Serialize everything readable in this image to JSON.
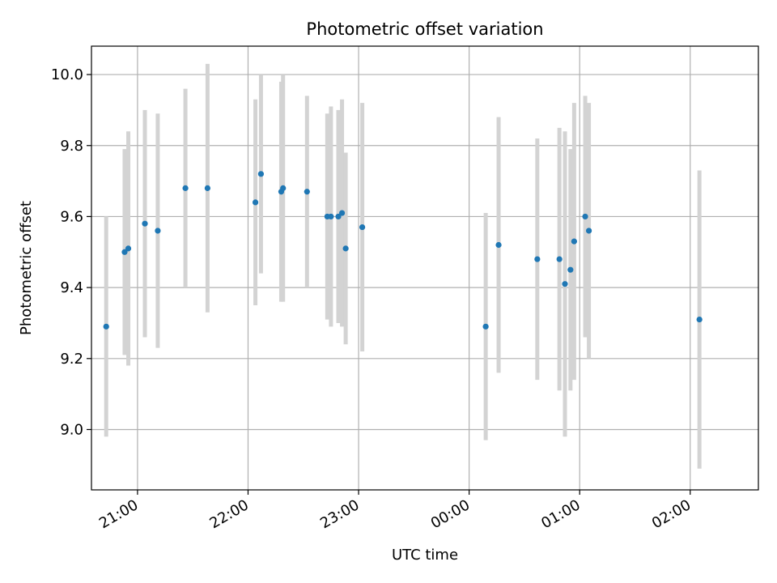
{
  "chart_data": {
    "type": "scatter",
    "title": "Photometric offset variation",
    "xlabel": "UTC time",
    "ylabel": "Photometric offset",
    "grid": true,
    "x_axis": "time",
    "xlim": [
      "20:35",
      "02:37"
    ],
    "ylim": [
      8.83,
      10.08
    ],
    "x_ticks": [
      "21:00",
      "22:00",
      "23:00",
      "00:00",
      "01:00",
      "02:00"
    ],
    "y_ticks": [
      "9.0",
      "9.2",
      "9.4",
      "9.6",
      "9.8",
      "10.0"
    ],
    "marker_color": "#1f77b4",
    "errorbar_color": "#d3d3d3",
    "points": [
      {
        "time": "20:43",
        "y": 9.29,
        "err": 0.31
      },
      {
        "time": "20:53",
        "y": 9.5,
        "err": 0.29
      },
      {
        "time": "20:55",
        "y": 9.51,
        "err": 0.33
      },
      {
        "time": "21:04",
        "y": 9.58,
        "err": 0.32
      },
      {
        "time": "21:11",
        "y": 9.56,
        "err": 0.33
      },
      {
        "time": "21:26",
        "y": 9.68,
        "err": 0.28
      },
      {
        "time": "21:38",
        "y": 9.68,
        "err": 0.35
      },
      {
        "time": "22:04",
        "y": 9.64,
        "err": 0.29
      },
      {
        "time": "22:07",
        "y": 9.72,
        "err": 0.28
      },
      {
        "time": "22:18",
        "y": 9.67,
        "err": 0.31
      },
      {
        "time": "22:19",
        "y": 9.68,
        "err": 0.32
      },
      {
        "time": "22:32",
        "y": 9.67,
        "err": 0.27
      },
      {
        "time": "22:43",
        "y": 9.6,
        "err": 0.29
      },
      {
        "time": "22:45",
        "y": 9.6,
        "err": 0.31
      },
      {
        "time": "22:49",
        "y": 9.6,
        "err": 0.3
      },
      {
        "time": "22:51",
        "y": 9.61,
        "err": 0.32
      },
      {
        "time": "22:53",
        "y": 9.51,
        "err": 0.27
      },
      {
        "time": "23:02",
        "y": 9.57,
        "err": 0.35
      },
      {
        "time": "00:09",
        "y": 9.29,
        "err": 0.32
      },
      {
        "time": "00:16",
        "y": 9.52,
        "err": 0.36
      },
      {
        "time": "00:37",
        "y": 9.48,
        "err": 0.34
      },
      {
        "time": "00:49",
        "y": 9.48,
        "err": 0.37
      },
      {
        "time": "00:52",
        "y": 9.41,
        "err": 0.43
      },
      {
        "time": "00:55",
        "y": 9.45,
        "err": 0.34
      },
      {
        "time": "00:57",
        "y": 9.53,
        "err": 0.39
      },
      {
        "time": "01:03",
        "y": 9.6,
        "err": 0.34
      },
      {
        "time": "01:05",
        "y": 9.56,
        "err": 0.36
      },
      {
        "time": "02:05",
        "y": 9.31,
        "err": 0.42
      }
    ]
  }
}
